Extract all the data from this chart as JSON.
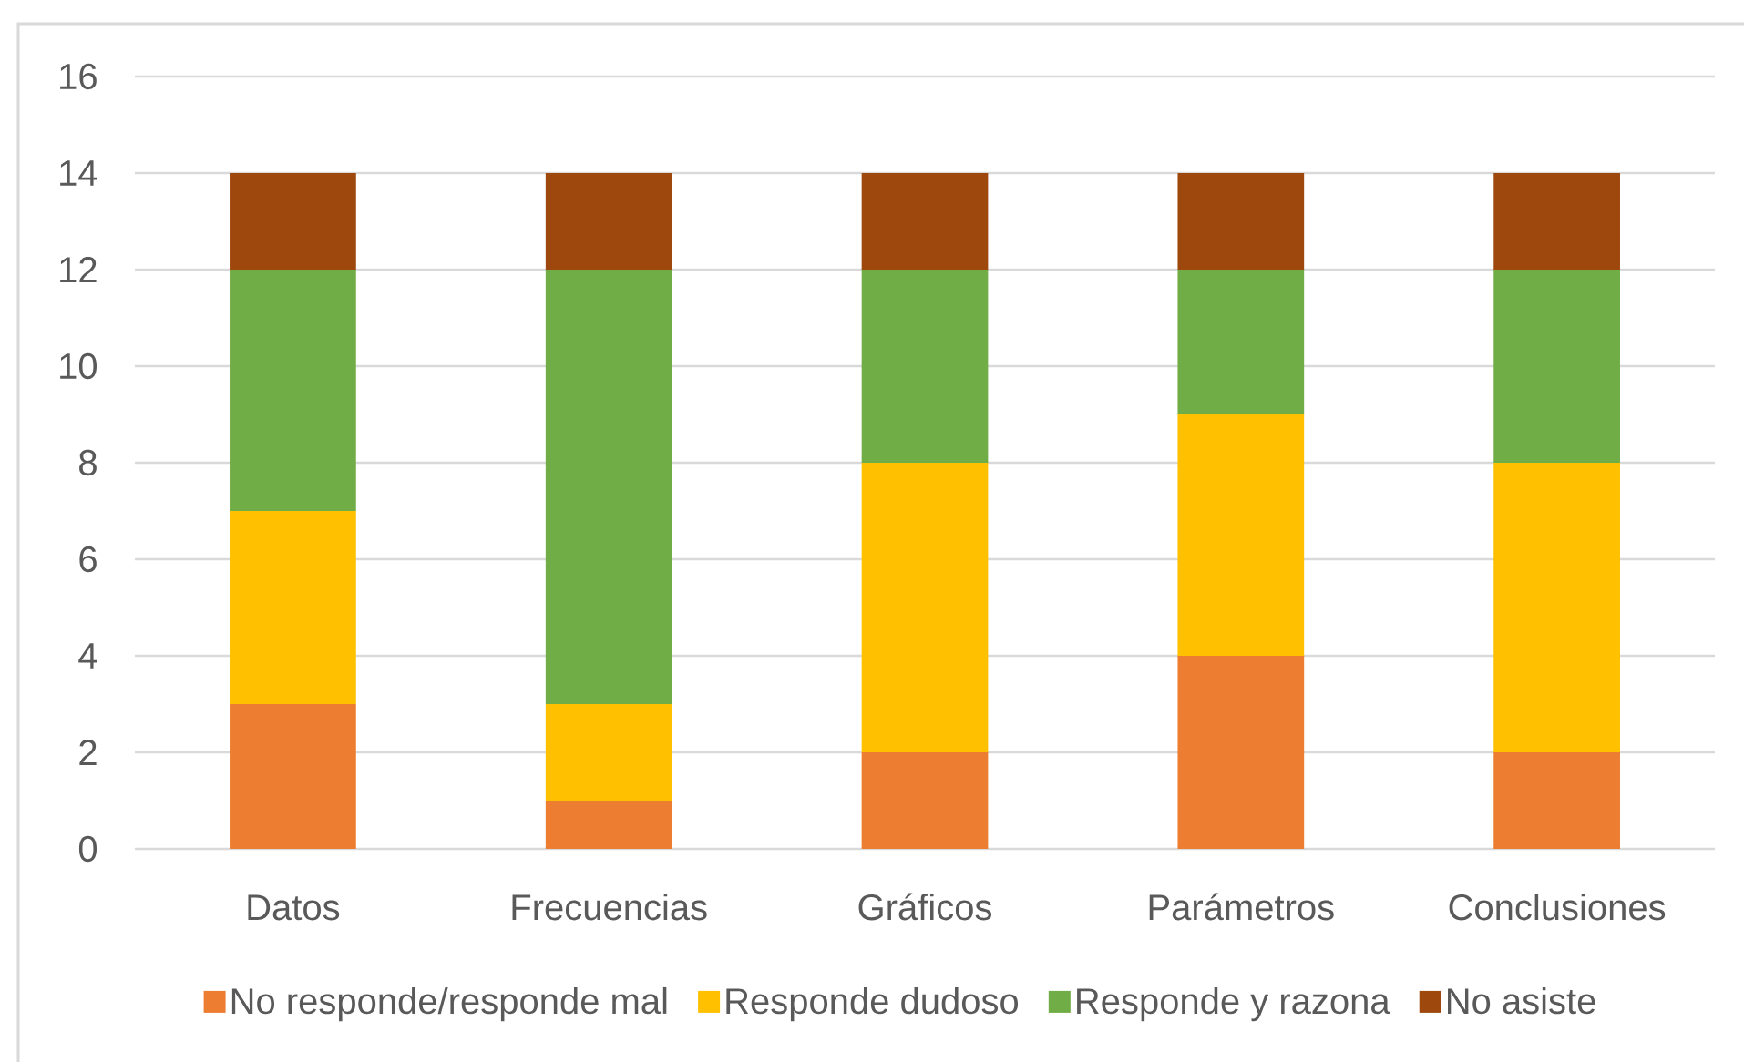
{
  "chart_data": {
    "type": "bar",
    "stacked": true,
    "categories": [
      "Datos",
      "Frecuencias",
      "Gráficos",
      "Parámetros",
      "Conclusiones"
    ],
    "series": [
      {
        "name": "No responde/responde mal",
        "color": "#ed7d31",
        "values": [
          3,
          1,
          2,
          4,
          2
        ]
      },
      {
        "name": "Responde dudoso",
        "color": "#ffc000",
        "values": [
          4,
          2,
          6,
          5,
          6
        ]
      },
      {
        "name": "Responde y razona",
        "color": "#70ad47",
        "values": [
          5,
          9,
          4,
          3,
          4
        ]
      },
      {
        "name": "No asiste",
        "color": "#9e480e",
        "values": [
          2,
          2,
          2,
          2,
          2
        ]
      }
    ],
    "ylim": [
      0,
      16
    ],
    "yticks": [
      0,
      2,
      4,
      6,
      8,
      10,
      12,
      14,
      16
    ],
    "grid": "y",
    "legend": "bottom"
  }
}
